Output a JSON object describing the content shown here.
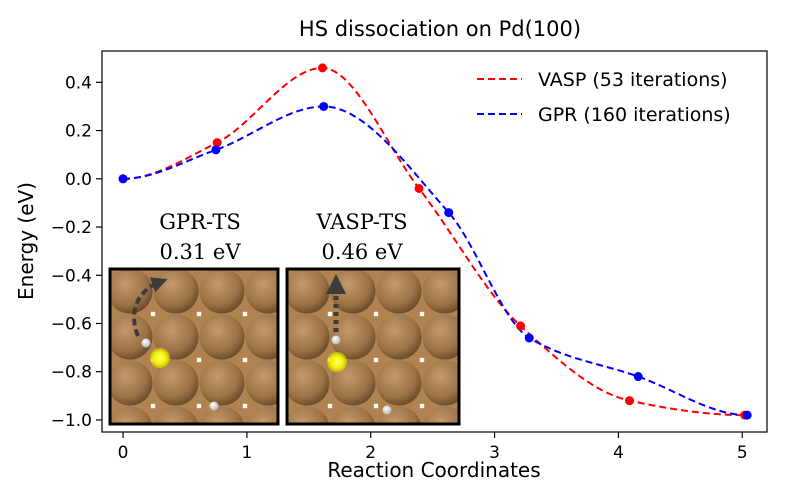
{
  "chart_data": {
    "type": "line",
    "title": "HS dissociation on Pd(100)",
    "xlabel": "Reaction Coordinates",
    "ylabel": "Energy (eV)",
    "xlim": [
      -0.17,
      5.2
    ],
    "ylim": [
      -1.05,
      0.53
    ],
    "xticks": [
      0,
      1,
      2,
      3,
      4,
      5
    ],
    "xtick_labels": [
      "0",
      "1",
      "2",
      "3",
      "4",
      "5"
    ],
    "yticks": [
      -1.0,
      -0.8,
      -0.6,
      -0.4,
      -0.2,
      0.0,
      0.2,
      0.4
    ],
    "ytick_labels": [
      "−1.0",
      "−0.8",
      "−0.6",
      "−0.4",
      "−0.2",
      "0.0",
      "0.2",
      "0.4"
    ],
    "grid": false,
    "legend_position": "top-right",
    "series": [
      {
        "name": "VASP (53 iterations)",
        "color": "#ff0000",
        "style": "dashed",
        "x": [
          0.0,
          0.76,
          1.61,
          2.39,
          3.21,
          4.09,
          5.02
        ],
        "y": [
          0.0,
          0.15,
          0.46,
          -0.04,
          -0.61,
          -0.92,
          -0.98
        ]
      },
      {
        "name": "GPR (160 iterations)",
        "color": "#0000ff",
        "style": "dashed",
        "x": [
          0.0,
          0.75,
          1.62,
          2.63,
          3.28,
          4.16,
          5.04
        ],
        "y": [
          0.0,
          0.12,
          0.3,
          -0.14,
          -0.66,
          -0.82,
          -0.98
        ]
      }
    ],
    "insets": [
      {
        "title": "GPR-TS",
        "value": "0.31 eV",
        "arrow": "curved"
      },
      {
        "title": "VASP-TS",
        "value": "0.46 eV",
        "arrow": "straight-dotted"
      }
    ]
  }
}
